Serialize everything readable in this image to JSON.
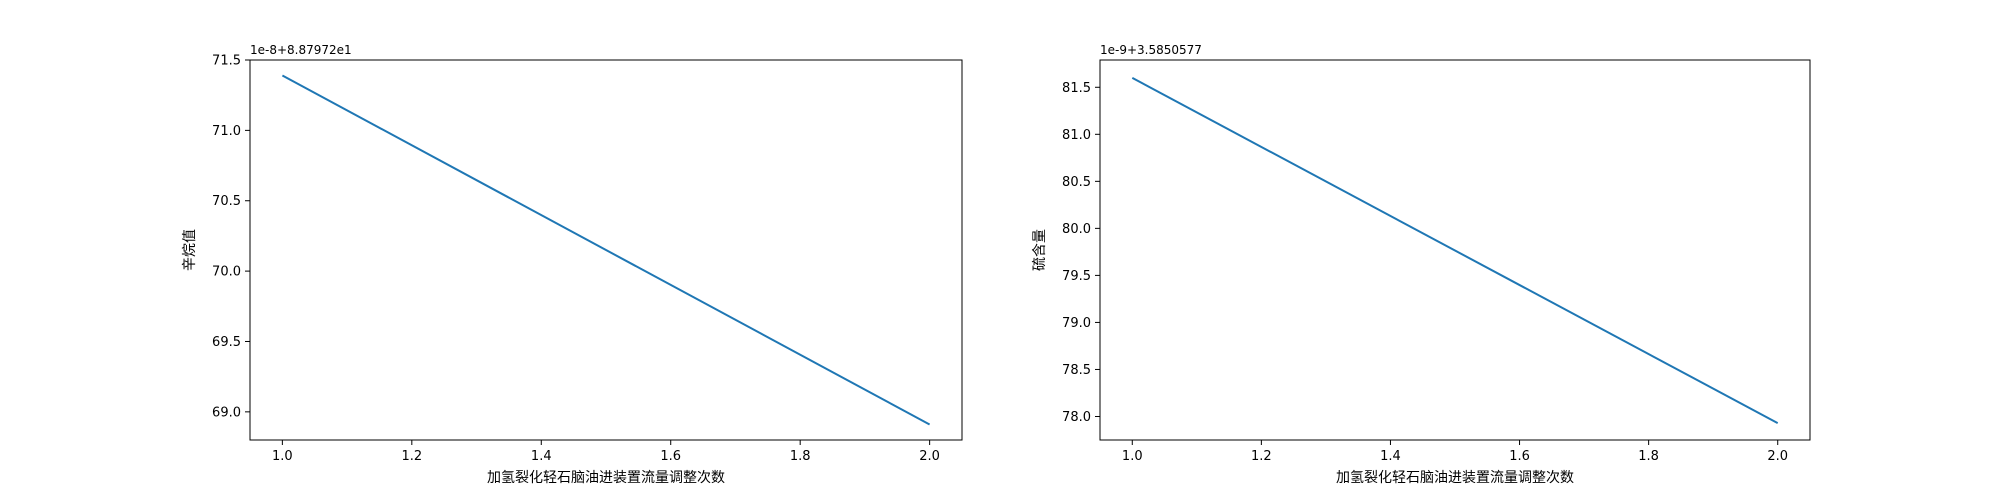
{
  "chart_data": [
    {
      "type": "line",
      "offset_label": "1e-8+8.87972e1",
      "xlabel": "加氢裂化轻石脑油进装置流量调整次数",
      "ylabel": "辛烷值",
      "x": [
        1.0,
        2.0
      ],
      "y": [
        71.39,
        68.91
      ],
      "xlim": [
        0.95,
        2.05
      ],
      "ylim": [
        68.8,
        71.5
      ],
      "xticks": [
        1.0,
        1.2,
        1.4,
        1.6,
        1.8,
        2.0
      ],
      "xtick_labels": [
        "1.0",
        "1.2",
        "1.4",
        "1.6",
        "1.8",
        "2.0"
      ],
      "yticks": [
        69.0,
        69.5,
        70.0,
        70.5,
        71.0,
        71.5
      ],
      "ytick_labels": [
        "69.0",
        "69.5",
        "70.0",
        "70.5",
        "71.0",
        "71.5"
      ],
      "grid": false,
      "line_color": "#1f77b4"
    },
    {
      "type": "line",
      "offset_label": "1e-9+3.5850577",
      "xlabel": "加氢裂化轻石脑油进装置流量调整次数",
      "ylabel": "硫含量",
      "x": [
        1.0,
        2.0
      ],
      "y": [
        81.6,
        77.93
      ],
      "xlim": [
        0.95,
        2.05
      ],
      "ylim": [
        77.75,
        81.79
      ],
      "xticks": [
        1.0,
        1.2,
        1.4,
        1.6,
        1.8,
        2.0
      ],
      "xtick_labels": [
        "1.0",
        "1.2",
        "1.4",
        "1.6",
        "1.8",
        "2.0"
      ],
      "yticks": [
        78.0,
        78.5,
        79.0,
        79.5,
        80.0,
        80.5,
        81.0,
        81.5
      ],
      "ytick_labels": [
        "78.0",
        "78.5",
        "79.0",
        "79.5",
        "80.0",
        "80.5",
        "81.0",
        "81.5"
      ],
      "grid": false,
      "line_color": "#1f77b4"
    }
  ]
}
